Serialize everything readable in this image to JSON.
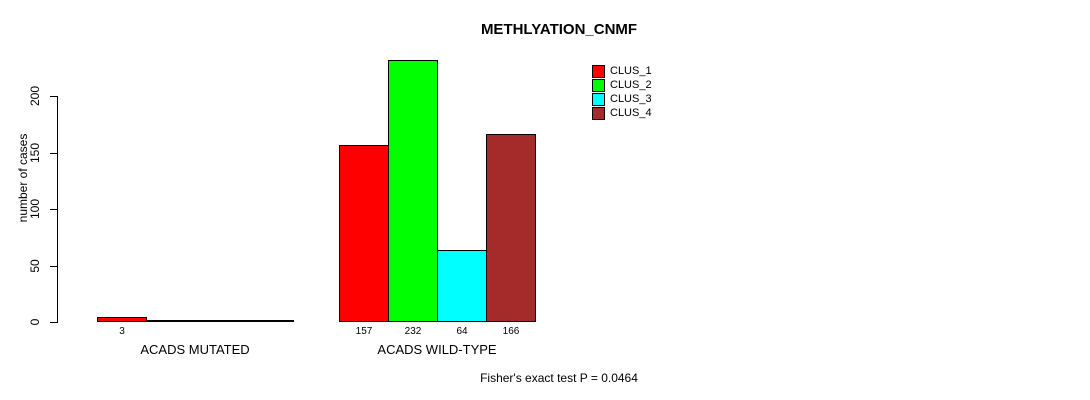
{
  "chart_data": {
    "type": "bar",
    "title": "METHLYATION_CNMF",
    "xlabel": "",
    "ylabel": "number of cases",
    "groups": [
      "ACADS MUTATED",
      "ACADS WILD-TYPE"
    ],
    "series": [
      {
        "name": "CLUS_1",
        "color": "#ff0000",
        "values": [
          3,
          157
        ]
      },
      {
        "name": "CLUS_2",
        "color": "#00ff00",
        "values": [
          0,
          232
        ]
      },
      {
        "name": "CLUS_3",
        "color": "#00ffff",
        "values": [
          0,
          64
        ]
      },
      {
        "name": "CLUS_4",
        "color": "#a52a2a",
        "values": [
          0,
          166
        ]
      }
    ],
    "bar_value_labels_shown": [
      "3",
      "157",
      "232",
      "64",
      "166"
    ],
    "yticks": [
      0,
      50,
      100,
      150,
      200
    ],
    "ylim": [
      0,
      232
    ],
    "grid": false,
    "legend_position": "top-right",
    "legend_entries": [
      "CLUS_1",
      "CLUS_2",
      "CLUS_3",
      "CLUS_4"
    ],
    "annotation": "Fisher's exact test P = 0.0464",
    "colors": {
      "background": "#ffffff",
      "axis": "#000000",
      "text": "#000000",
      "bar_border": "#000000"
    }
  }
}
